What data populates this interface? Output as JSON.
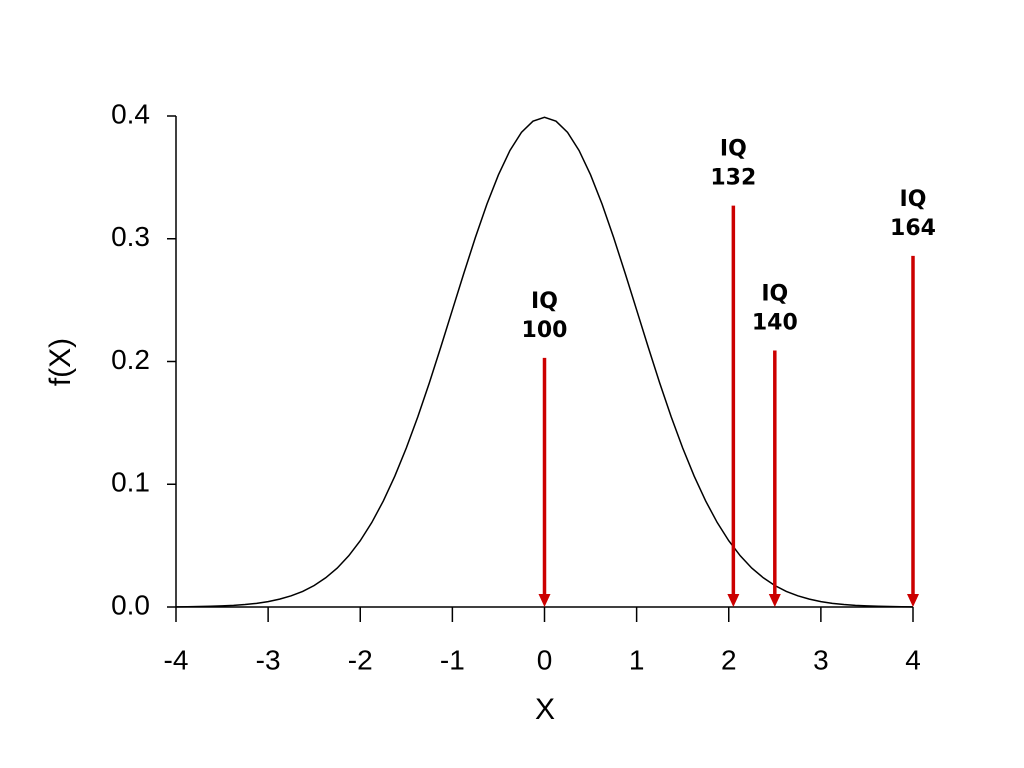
{
  "chart_data": {
    "type": "line",
    "x_label": "X",
    "y_label": "f(X)",
    "color": "#000000",
    "x": [
      -4,
      -3.875,
      -3.75,
      -3.625,
      -3.5,
      -3.375,
      -3.25,
      -3.125,
      -3,
      -2.875,
      -2.75,
      -2.625,
      -2.5,
      -2.375,
      -2.25,
      -2.125,
      -2,
      -1.875,
      -1.75,
      -1.625,
      -1.5,
      -1.375,
      -1.25,
      -1.125,
      -1,
      -0.875,
      -0.75,
      -0.625,
      -0.5,
      -0.375,
      -0.25,
      -0.125,
      0,
      0.125,
      0.25,
      0.375,
      0.5,
      0.625,
      0.75,
      0.875,
      1,
      1.125,
      1.25,
      1.375,
      1.5,
      1.625,
      1.75,
      1.875,
      2,
      2.125,
      2.25,
      2.375,
      2.5,
      2.625,
      2.75,
      2.875,
      3,
      3.125,
      3.25,
      3.375,
      3.5,
      3.625,
      3.75,
      3.875,
      4
    ],
    "values": [
      0.0001,
      0.0002,
      0.0004,
      0.0006,
      0.0009,
      0.0013,
      0.002,
      0.003,
      0.0044,
      0.0064,
      0.0091,
      0.0127,
      0.0175,
      0.0238,
      0.0317,
      0.0417,
      0.054,
      0.0688,
      0.0863,
      0.1066,
      0.1295,
      0.155,
      0.1826,
      0.2119,
      0.242,
      0.272,
      0.3011,
      0.3282,
      0.3521,
      0.3719,
      0.3867,
      0.3958,
      0.3989,
      0.3958,
      0.3867,
      0.3719,
      0.3521,
      0.3282,
      0.3011,
      0.272,
      0.242,
      0.2119,
      0.1826,
      0.155,
      0.1295,
      0.1066,
      0.0863,
      0.0688,
      0.054,
      0.0417,
      0.0317,
      0.0238,
      0.0175,
      0.0127,
      0.0091,
      0.0064,
      0.0044,
      0.003,
      0.002,
      0.0013,
      0.0009,
      0.0006,
      0.0004,
      0.0002,
      0.0001
    ],
    "xlim": [
      -4,
      4
    ],
    "xticks": [
      -4,
      -3,
      -2,
      -1,
      0,
      1,
      2,
      3,
      4
    ],
    "ylim": [
      0,
      0.4
    ],
    "yticks": [
      {
        "value": 0,
        "label": "0.0"
      },
      0.1,
      0.2,
      0.3,
      0.4
    ],
    "annotation_color": "#cc0000",
    "annotations": [
      {
        "x": 0,
        "y": 0.203,
        "text": [
          "IQ",
          "100"
        ]
      },
      {
        "x": 2.05,
        "y": 0.327,
        "text": [
          "IQ",
          "132"
        ]
      },
      {
        "x": 2.5,
        "y": 0.209,
        "text": [
          "IQ",
          "140"
        ]
      },
      {
        "x": 4,
        "y": 0.286,
        "text": [
          "IQ",
          "164"
        ]
      }
    ]
  }
}
